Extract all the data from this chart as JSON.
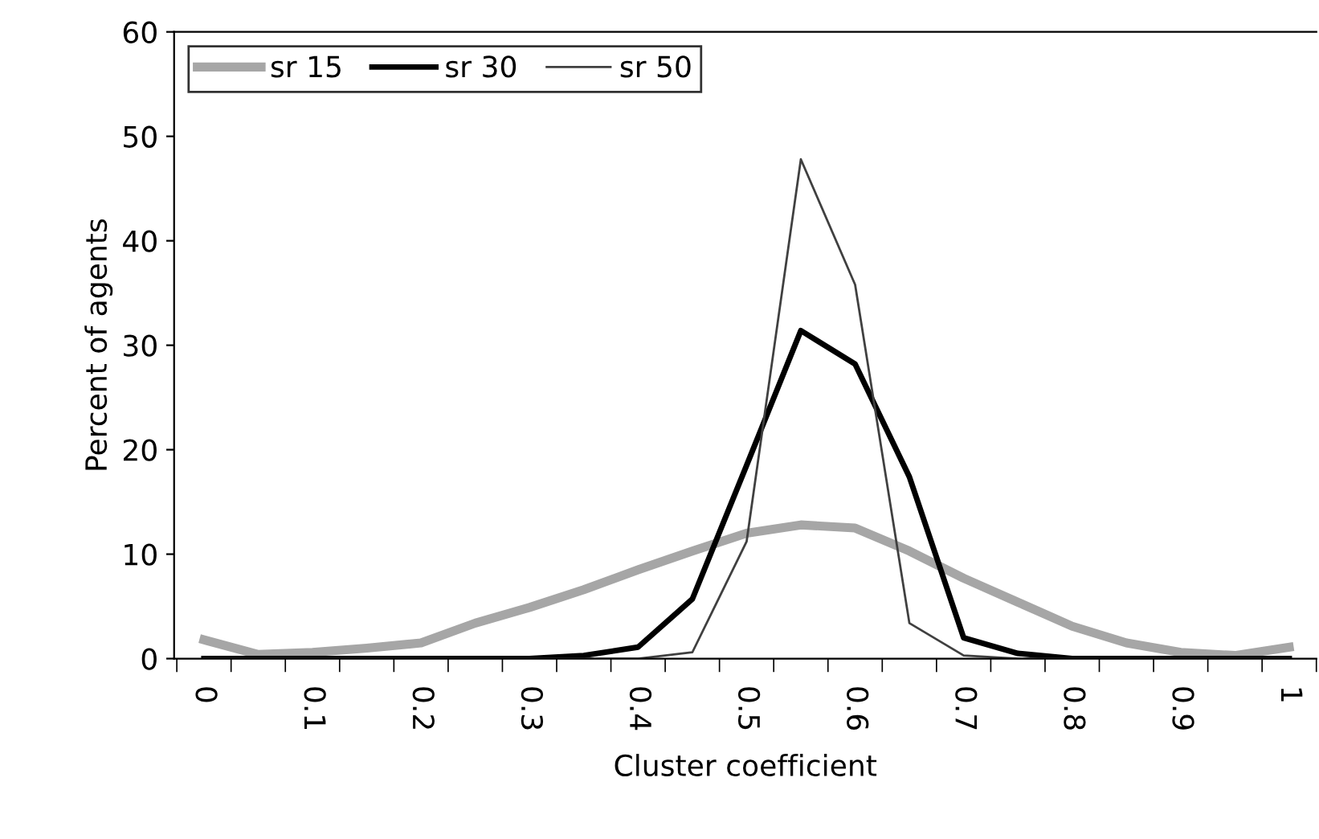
{
  "chart_data": {
    "type": "line",
    "xlabel": "Cluster coefficient",
    "ylabel": "Percent of agents",
    "categories": [
      "0",
      null,
      "0.1",
      null,
      "0.2",
      null,
      "0.3",
      null,
      "0.4",
      null,
      "0.5",
      null,
      "0.6",
      null,
      "0.7",
      null,
      "0.8",
      null,
      "0.9",
      null,
      "1"
    ],
    "series": [
      {
        "name": "sr 15",
        "color": "#a6a6a6",
        "values": [
          1.8,
          0.4,
          0.6,
          1.0,
          1.5,
          3.4,
          4.9,
          6.6,
          8.5,
          10.3,
          12,
          12.8,
          12.5,
          10.3,
          7.7,
          5.4,
          3.1,
          1.5,
          0.6,
          0.3,
          1.1
        ]
      },
      {
        "name": "sr 30",
        "color": "#000000",
        "values": [
          0,
          0,
          0,
          0,
          0,
          0,
          0,
          0.3,
          1.1,
          5.7,
          18.5,
          31.4,
          28.2,
          17.4,
          2.0,
          0.5,
          0,
          0,
          0,
          0,
          0
        ]
      },
      {
        "name": "sr 50",
        "color": "#404040",
        "values": [
          0,
          0,
          0,
          0,
          0,
          0,
          0,
          0,
          0,
          0.6,
          11.2,
          47.8,
          35.8,
          3.4,
          0.3,
          0,
          0,
          0,
          0,
          0,
          0
        ]
      }
    ],
    "ylim": [
      0,
      60
    ],
    "yticks": [
      0,
      10,
      20,
      30,
      40,
      50,
      60
    ],
    "grid": false,
    "legend": "top left",
    "marker": "none",
    "line_style": "solid"
  }
}
